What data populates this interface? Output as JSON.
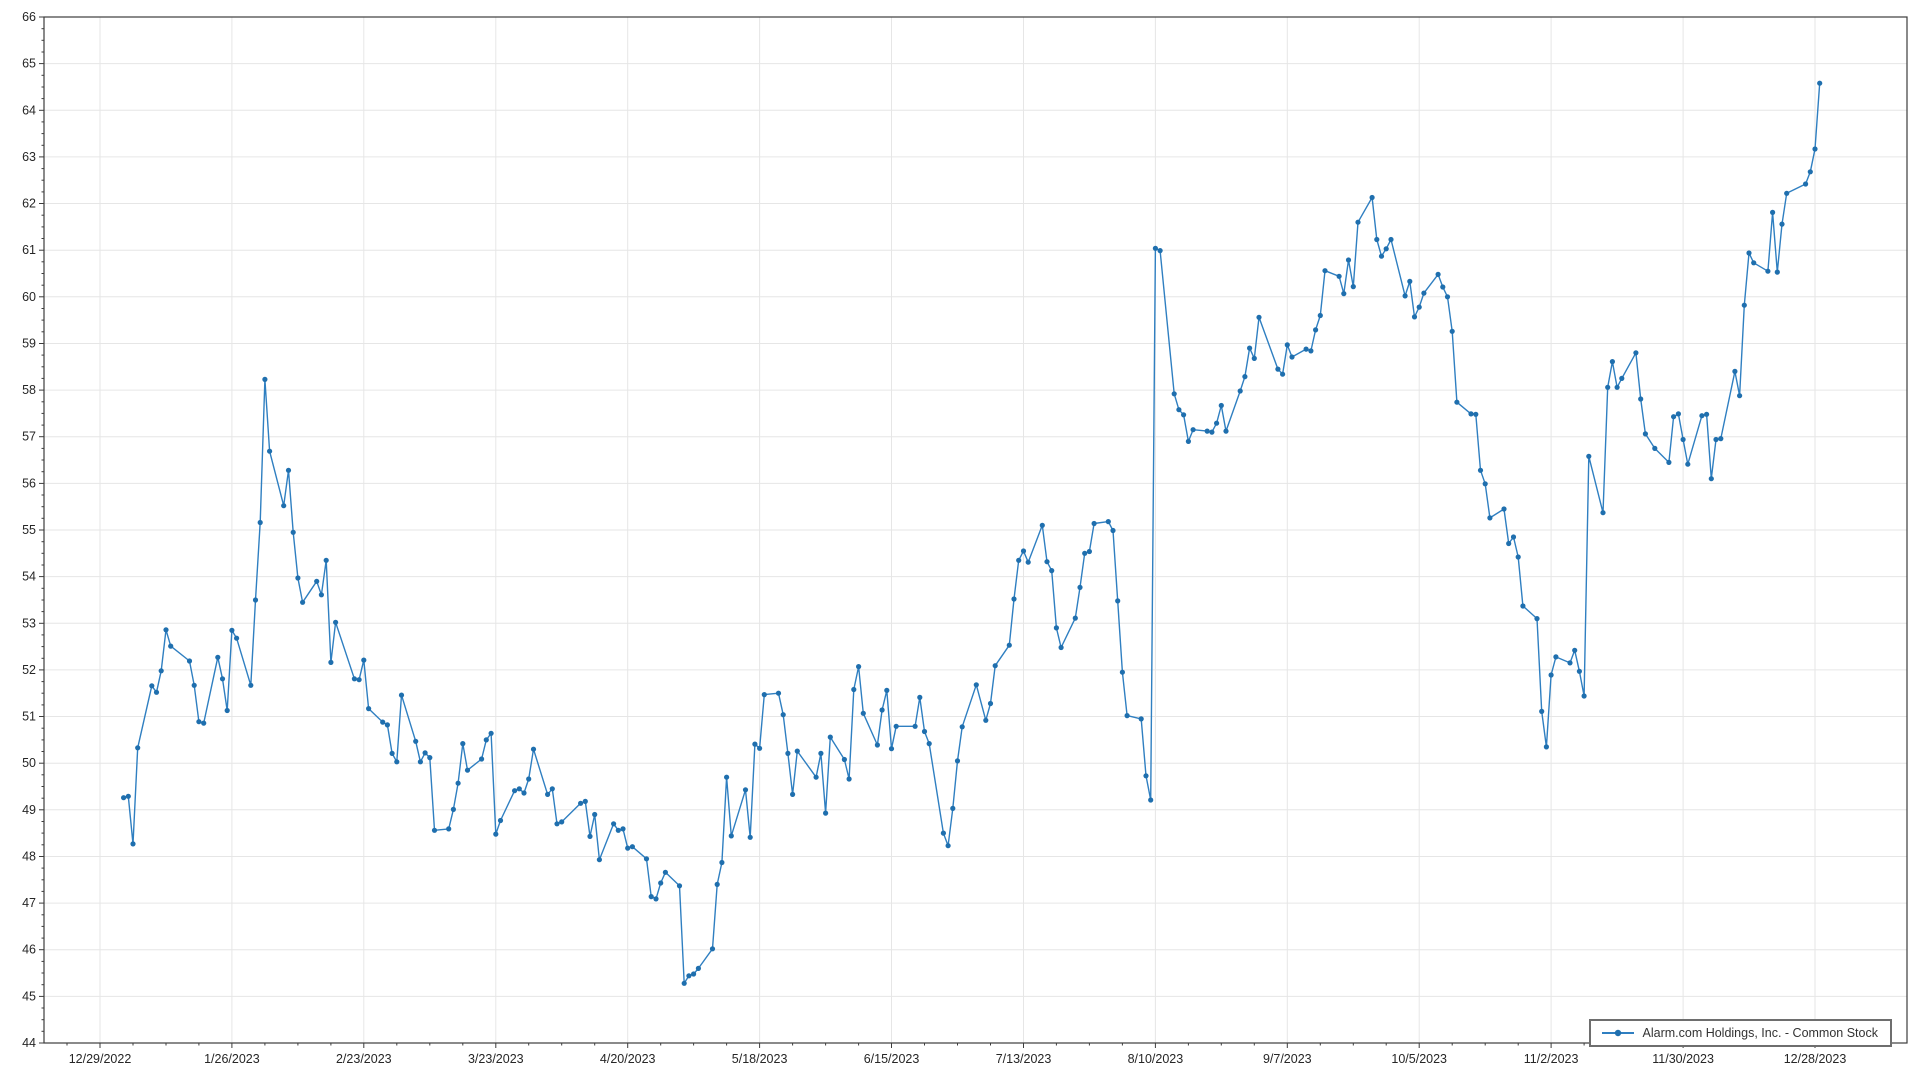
{
  "chart_data": {
    "type": "line",
    "title": "",
    "x_origin": "2022-12-29",
    "ylim": [
      44,
      66
    ],
    "y_tick_step": 1,
    "grid": true,
    "legend_position": "bottom-right",
    "colors": {
      "line": "#2f7fc1",
      "marker": "#1f6fae",
      "grid": "#e6e6e6",
      "axis_border": "#3c3c3c",
      "tick_label": "#262626",
      "legend_border": "#6e6e6e",
      "background": "#ffffff"
    },
    "x_ticks": [
      {
        "date": "2022-12-29",
        "label": "12/29/2022"
      },
      {
        "date": "2023-01-26",
        "label": "1/26/2023"
      },
      {
        "date": "2023-02-23",
        "label": "2/23/2023"
      },
      {
        "date": "2023-03-23",
        "label": "3/23/2023"
      },
      {
        "date": "2023-04-20",
        "label": "4/20/2023"
      },
      {
        "date": "2023-05-18",
        "label": "5/18/2023"
      },
      {
        "date": "2023-06-15",
        "label": "6/15/2023"
      },
      {
        "date": "2023-07-13",
        "label": "7/13/2023"
      },
      {
        "date": "2023-08-10",
        "label": "8/10/2023"
      },
      {
        "date": "2023-09-07",
        "label": "9/7/2023"
      },
      {
        "date": "2023-10-05",
        "label": "10/5/2023"
      },
      {
        "date": "2023-11-02",
        "label": "11/2/2023"
      },
      {
        "date": "2023-11-30",
        "label": "11/30/2023"
      },
      {
        "date": "2023-12-28",
        "label": "12/28/2023"
      }
    ],
    "series": [
      {
        "name": "Alarm.com Holdings, Inc. - Common Stock",
        "color": "#2f7fc1",
        "marker": "circle",
        "data": [
          [
            "2023-01-03",
            49.26
          ],
          [
            "2023-01-04",
            49.29
          ],
          [
            "2023-01-05",
            48.27
          ],
          [
            "2023-01-06",
            50.33
          ],
          [
            "2023-01-09",
            51.66
          ],
          [
            "2023-01-10",
            51.52
          ],
          [
            "2023-01-11",
            51.98
          ],
          [
            "2023-01-12",
            52.86
          ],
          [
            "2023-01-13",
            52.51
          ],
          [
            "2023-01-17",
            52.19
          ],
          [
            "2023-01-18",
            51.67
          ],
          [
            "2023-01-19",
            50.89
          ],
          [
            "2023-01-20",
            50.86
          ],
          [
            "2023-01-23",
            52.27
          ],
          [
            "2023-01-24",
            51.81
          ],
          [
            "2023-01-25",
            51.13
          ],
          [
            "2023-01-26",
            52.85
          ],
          [
            "2023-01-27",
            52.68
          ],
          [
            "2023-01-30",
            51.67
          ],
          [
            "2023-01-31",
            53.5
          ],
          [
            "2023-02-01",
            55.16
          ],
          [
            "2023-02-02",
            58.23
          ],
          [
            "2023-02-03",
            56.69
          ],
          [
            "2023-02-06",
            55.52
          ],
          [
            "2023-02-07",
            56.28
          ],
          [
            "2023-02-08",
            54.95
          ],
          [
            "2023-02-09",
            53.97
          ],
          [
            "2023-02-10",
            53.45
          ],
          [
            "2023-02-13",
            53.9
          ],
          [
            "2023-02-14",
            53.61
          ],
          [
            "2023-02-15",
            54.35
          ],
          [
            "2023-02-16",
            52.16
          ],
          [
            "2023-02-17",
            53.02
          ],
          [
            "2023-02-21",
            51.81
          ],
          [
            "2023-02-22",
            51.79
          ],
          [
            "2023-02-23",
            52.21
          ],
          [
            "2023-02-24",
            51.17
          ],
          [
            "2023-02-27",
            50.88
          ],
          [
            "2023-02-28",
            50.82
          ],
          [
            "2023-03-01",
            50.21
          ],
          [
            "2023-03-02",
            50.03
          ],
          [
            "2023-03-03",
            51.46
          ],
          [
            "2023-03-06",
            50.47
          ],
          [
            "2023-03-07",
            50.03
          ],
          [
            "2023-03-08",
            50.22
          ],
          [
            "2023-03-09",
            50.12
          ],
          [
            "2023-03-10",
            48.56
          ],
          [
            "2023-03-13",
            48.59
          ],
          [
            "2023-03-14",
            49.01
          ],
          [
            "2023-03-15",
            49.57
          ],
          [
            "2023-03-16",
            50.42
          ],
          [
            "2023-03-17",
            49.85
          ],
          [
            "2023-03-20",
            50.09
          ],
          [
            "2023-03-21",
            50.5
          ],
          [
            "2023-03-22",
            50.64
          ],
          [
            "2023-03-23",
            48.48
          ],
          [
            "2023-03-24",
            48.77
          ],
          [
            "2023-03-27",
            49.41
          ],
          [
            "2023-03-28",
            49.45
          ],
          [
            "2023-03-29",
            49.36
          ],
          [
            "2023-03-30",
            49.66
          ],
          [
            "2023-03-31",
            50.3
          ],
          [
            "2023-04-03",
            49.33
          ],
          [
            "2023-04-04",
            49.45
          ],
          [
            "2023-04-05",
            48.7
          ],
          [
            "2023-04-06",
            48.74
          ],
          [
            "2023-04-10",
            49.14
          ],
          [
            "2023-04-11",
            49.18
          ],
          [
            "2023-04-12",
            48.43
          ],
          [
            "2023-04-13",
            48.9
          ],
          [
            "2023-04-14",
            47.93
          ],
          [
            "2023-04-17",
            48.7
          ],
          [
            "2023-04-18",
            48.56
          ],
          [
            "2023-04-19",
            48.59
          ],
          [
            "2023-04-20",
            48.18
          ],
          [
            "2023-04-21",
            48.21
          ],
          [
            "2023-04-24",
            47.95
          ],
          [
            "2023-04-25",
            47.14
          ],
          [
            "2023-04-26",
            47.09
          ],
          [
            "2023-04-27",
            47.43
          ],
          [
            "2023-04-28",
            47.66
          ],
          [
            "2023-05-01",
            47.37
          ],
          [
            "2023-05-02",
            45.28
          ],
          [
            "2023-05-03",
            45.44
          ],
          [
            "2023-05-04",
            45.48
          ],
          [
            "2023-05-05",
            45.6
          ],
          [
            "2023-05-08",
            46.02
          ],
          [
            "2023-05-09",
            47.4
          ],
          [
            "2023-05-10",
            47.87
          ],
          [
            "2023-05-11",
            49.7
          ],
          [
            "2023-05-12",
            48.44
          ],
          [
            "2023-05-15",
            49.43
          ],
          [
            "2023-05-16",
            48.41
          ],
          [
            "2023-05-17",
            50.41
          ],
          [
            "2023-05-18",
            50.32
          ],
          [
            "2023-05-19",
            51.47
          ],
          [
            "2023-05-22",
            51.5
          ],
          [
            "2023-05-23",
            51.04
          ],
          [
            "2023-05-24",
            50.21
          ],
          [
            "2023-05-25",
            49.33
          ],
          [
            "2023-05-26",
            50.26
          ],
          [
            "2023-05-30",
            49.7
          ],
          [
            "2023-05-31",
            50.21
          ],
          [
            "2023-06-01",
            48.93
          ],
          [
            "2023-06-02",
            50.56
          ],
          [
            "2023-06-05",
            50.08
          ],
          [
            "2023-06-06",
            49.66
          ],
          [
            "2023-06-07",
            51.58
          ],
          [
            "2023-06-08",
            52.07
          ],
          [
            "2023-06-09",
            51.07
          ],
          [
            "2023-06-12",
            50.39
          ],
          [
            "2023-06-13",
            51.14
          ],
          [
            "2023-06-14",
            51.56
          ],
          [
            "2023-06-15",
            50.31
          ],
          [
            "2023-06-16",
            50.79
          ],
          [
            "2023-06-20",
            50.79
          ],
          [
            "2023-06-21",
            51.41
          ],
          [
            "2023-06-22",
            50.68
          ],
          [
            "2023-06-23",
            50.42
          ],
          [
            "2023-06-26",
            48.5
          ],
          [
            "2023-06-27",
            48.23
          ],
          [
            "2023-06-28",
            49.03
          ],
          [
            "2023-06-29",
            50.05
          ],
          [
            "2023-06-30",
            50.78
          ],
          [
            "2023-07-03",
            51.68
          ],
          [
            "2023-07-05",
            50.92
          ],
          [
            "2023-07-06",
            51.28
          ],
          [
            "2023-07-07",
            52.09
          ],
          [
            "2023-07-10",
            52.53
          ],
          [
            "2023-07-11",
            53.52
          ],
          [
            "2023-07-12",
            54.35
          ],
          [
            "2023-07-13",
            54.55
          ],
          [
            "2023-07-14",
            54.31
          ],
          [
            "2023-07-17",
            55.1
          ],
          [
            "2023-07-18",
            54.32
          ],
          [
            "2023-07-19",
            54.13
          ],
          [
            "2023-07-20",
            52.9
          ],
          [
            "2023-07-21",
            52.48
          ],
          [
            "2023-07-24",
            53.11
          ],
          [
            "2023-07-25",
            53.77
          ],
          [
            "2023-07-26",
            54.5
          ],
          [
            "2023-07-27",
            54.54
          ],
          [
            "2023-07-28",
            55.14
          ],
          [
            "2023-07-31",
            55.18
          ],
          [
            "2023-08-01",
            54.99
          ],
          [
            "2023-08-02",
            53.48
          ],
          [
            "2023-08-03",
            51.95
          ],
          [
            "2023-08-04",
            51.02
          ],
          [
            "2023-08-07",
            50.95
          ],
          [
            "2023-08-08",
            49.73
          ],
          [
            "2023-08-09",
            49.21
          ],
          [
            "2023-08-10",
            61.04
          ],
          [
            "2023-08-11",
            60.99
          ],
          [
            "2023-08-14",
            57.92
          ],
          [
            "2023-08-15",
            57.58
          ],
          [
            "2023-08-16",
            57.47
          ],
          [
            "2023-08-17",
            56.9
          ],
          [
            "2023-08-18",
            57.15
          ],
          [
            "2023-08-21",
            57.12
          ],
          [
            "2023-08-22",
            57.1
          ],
          [
            "2023-08-23",
            57.29
          ],
          [
            "2023-08-24",
            57.67
          ],
          [
            "2023-08-25",
            57.12
          ],
          [
            "2023-08-28",
            57.98
          ],
          [
            "2023-08-29",
            58.29
          ],
          [
            "2023-08-30",
            58.9
          ],
          [
            "2023-08-31",
            58.68
          ],
          [
            "2023-09-01",
            59.56
          ],
          [
            "2023-09-05",
            58.45
          ],
          [
            "2023-09-06",
            58.34
          ],
          [
            "2023-09-07",
            58.97
          ],
          [
            "2023-09-08",
            58.71
          ],
          [
            "2023-09-11",
            58.88
          ],
          [
            "2023-09-12",
            58.84
          ],
          [
            "2023-09-13",
            59.29
          ],
          [
            "2023-09-14",
            59.6
          ],
          [
            "2023-09-15",
            60.56
          ],
          [
            "2023-09-18",
            60.44
          ],
          [
            "2023-09-19",
            60.07
          ],
          [
            "2023-09-20",
            60.79
          ],
          [
            "2023-09-21",
            60.22
          ],
          [
            "2023-09-22",
            61.6
          ],
          [
            "2023-09-25",
            62.13
          ],
          [
            "2023-09-26",
            61.23
          ],
          [
            "2023-09-27",
            60.87
          ],
          [
            "2023-09-28",
            61.03
          ],
          [
            "2023-09-29",
            61.23
          ],
          [
            "2023-10-02",
            60.02
          ],
          [
            "2023-10-03",
            60.33
          ],
          [
            "2023-10-04",
            59.57
          ],
          [
            "2023-10-05",
            59.78
          ],
          [
            "2023-10-06",
            60.08
          ],
          [
            "2023-10-09",
            60.48
          ],
          [
            "2023-10-10",
            60.21
          ],
          [
            "2023-10-11",
            60.0
          ],
          [
            "2023-10-12",
            59.26
          ],
          [
            "2023-10-13",
            57.74
          ],
          [
            "2023-10-16",
            57.49
          ],
          [
            "2023-10-17",
            57.48
          ],
          [
            "2023-10-18",
            56.28
          ],
          [
            "2023-10-19",
            55.99
          ],
          [
            "2023-10-20",
            55.26
          ],
          [
            "2023-10-23",
            55.45
          ],
          [
            "2023-10-24",
            54.71
          ],
          [
            "2023-10-25",
            54.85
          ],
          [
            "2023-10-26",
            54.42
          ],
          [
            "2023-10-27",
            53.37
          ],
          [
            "2023-10-30",
            53.1
          ],
          [
            "2023-10-31",
            51.11
          ],
          [
            "2023-11-01",
            50.35
          ],
          [
            "2023-11-02",
            51.89
          ],
          [
            "2023-11-03",
            52.28
          ],
          [
            "2023-11-06",
            52.15
          ],
          [
            "2023-11-07",
            52.42
          ],
          [
            "2023-11-08",
            51.97
          ],
          [
            "2023-11-09",
            51.44
          ],
          [
            "2023-11-10",
            56.58
          ],
          [
            "2023-11-13",
            55.37
          ],
          [
            "2023-11-14",
            58.06
          ],
          [
            "2023-11-15",
            58.61
          ],
          [
            "2023-11-16",
            58.06
          ],
          [
            "2023-11-17",
            58.25
          ],
          [
            "2023-11-20",
            58.8
          ],
          [
            "2023-11-21",
            57.81
          ],
          [
            "2023-11-22",
            57.06
          ],
          [
            "2023-11-24",
            56.75
          ],
          [
            "2023-11-27",
            56.45
          ],
          [
            "2023-11-28",
            57.43
          ],
          [
            "2023-11-29",
            57.49
          ],
          [
            "2023-11-30",
            56.94
          ],
          [
            "2023-12-01",
            56.41
          ],
          [
            "2023-12-04",
            57.45
          ],
          [
            "2023-12-05",
            57.48
          ],
          [
            "2023-12-06",
            56.1
          ],
          [
            "2023-12-07",
            56.94
          ],
          [
            "2023-12-08",
            56.96
          ],
          [
            "2023-12-11",
            58.4
          ],
          [
            "2023-12-12",
            57.88
          ],
          [
            "2023-12-13",
            59.82
          ],
          [
            "2023-12-14",
            60.94
          ],
          [
            "2023-12-15",
            60.73
          ],
          [
            "2023-12-18",
            60.55
          ],
          [
            "2023-12-19",
            61.81
          ],
          [
            "2023-12-20",
            60.53
          ],
          [
            "2023-12-21",
            61.56
          ],
          [
            "2023-12-22",
            62.22
          ],
          [
            "2023-12-26",
            62.42
          ],
          [
            "2023-12-27",
            62.68
          ],
          [
            "2023-12-28",
            63.17
          ],
          [
            "2023-12-29",
            64.58
          ]
        ]
      }
    ]
  }
}
